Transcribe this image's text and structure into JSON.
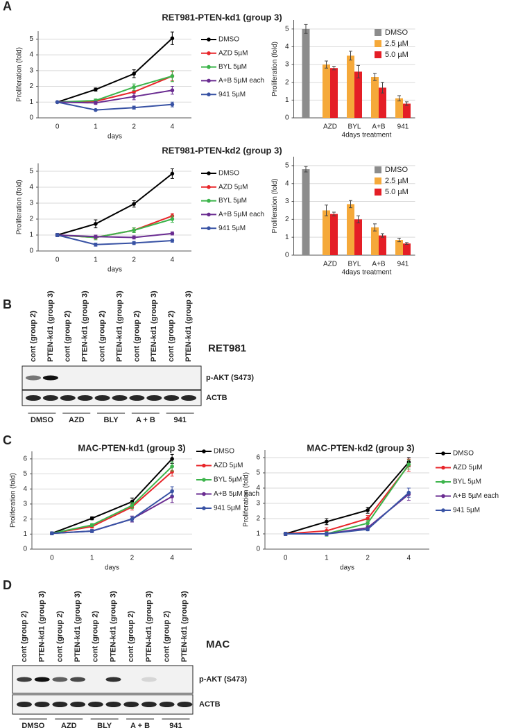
{
  "panel_labels": [
    "A",
    "B",
    "C",
    "D"
  ],
  "chart_data": [
    {
      "type": "line",
      "title": "RET981-PTEN-kd1 (group 3)",
      "xlabel": "days",
      "ylabel": "Proliferation (fold)",
      "categories": [
        "0",
        "1",
        "2",
        "4"
      ],
      "ylim": [
        0,
        5.5
      ],
      "yticks": [
        0,
        1,
        2,
        3,
        4,
        5
      ],
      "grid": true,
      "series": [
        {
          "name": "DMSO",
          "color": "#000000",
          "values": [
            1,
            1.8,
            2.8,
            5.05
          ],
          "errors": [
            0.05,
            0.1,
            0.25,
            0.4
          ]
        },
        {
          "name": "AZD 5µM",
          "color": "#e8262a",
          "values": [
            1,
            1.05,
            1.65,
            2.65
          ],
          "errors": [
            0.05,
            0.1,
            0.25,
            0.3
          ]
        },
        {
          "name": "BYL 5µM",
          "color": "#3cb44b",
          "values": [
            1,
            1.1,
            1.95,
            2.65
          ],
          "errors": [
            0.05,
            0.1,
            0.2,
            0.35
          ]
        },
        {
          "name": "A+B 5µM each",
          "color": "#6a2c91",
          "values": [
            1,
            0.95,
            1.35,
            1.75
          ],
          "errors": [
            0.05,
            0.1,
            0.2,
            0.25
          ]
        },
        {
          "name": "941 5µM",
          "color": "#3852a4",
          "values": [
            1,
            0.5,
            0.65,
            0.85
          ],
          "errors": [
            0.05,
            0.05,
            0.1,
            0.15
          ]
        }
      ]
    },
    {
      "type": "bar",
      "ylabel": "Proliferation (fold)",
      "xlabel": "4days treatment",
      "categories": [
        null,
        "AZD",
        "BYL",
        "A+B",
        "941"
      ],
      "ylim": [
        0,
        5.5
      ],
      "yticks": [
        0,
        1,
        2,
        3,
        4,
        5
      ],
      "grid": true,
      "series": [
        {
          "name": "DMSO",
          "color": "#8c8c8c",
          "values": [
            5.0,
            null,
            null,
            null,
            null
          ],
          "errors": [
            0.25,
            null,
            null,
            null,
            null
          ]
        },
        {
          "name": "2.5 µM",
          "color": "#f5a93a",
          "values": [
            null,
            3.0,
            3.5,
            2.3,
            1.1
          ],
          "errors": [
            null,
            0.2,
            0.25,
            0.2,
            0.15
          ]
        },
        {
          "name": "5.0 µM",
          "color": "#e41e26",
          "values": [
            null,
            2.8,
            2.6,
            1.7,
            0.8
          ],
          "errors": [
            null,
            0.1,
            0.35,
            0.3,
            0.1
          ]
        }
      ]
    },
    {
      "type": "line",
      "title": "RET981-PTEN-kd2 (group 3)",
      "xlabel": "days",
      "ylabel": "Proliferation (fold)",
      "categories": [
        "0",
        "1",
        "2",
        "4"
      ],
      "ylim": [
        0,
        5.5
      ],
      "yticks": [
        0,
        1,
        2,
        3,
        4,
        5
      ],
      "grid": true,
      "series": [
        {
          "name": "DMSO",
          "color": "#000000",
          "values": [
            1,
            1.7,
            2.95,
            4.85
          ],
          "errors": [
            0.1,
            0.25,
            0.2,
            0.3
          ]
        },
        {
          "name": "AZD 5µM",
          "color": "#e8262a",
          "values": [
            1,
            0.85,
            1.3,
            2.2
          ],
          "errors": [
            0.1,
            0.1,
            0.15,
            0.15
          ]
        },
        {
          "name": "BYL 5µM",
          "color": "#3cb44b",
          "values": [
            1,
            0.85,
            1.3,
            2.0
          ],
          "errors": [
            0.1,
            0.15,
            0.15,
            0.2
          ]
        },
        {
          "name": "A+B 5µM each",
          "color": "#6a2c91",
          "values": [
            1,
            0.9,
            0.85,
            1.1
          ],
          "errors": [
            0.1,
            0.1,
            0.1,
            0.1
          ]
        },
        {
          "name": "941 5µM",
          "color": "#3852a4",
          "values": [
            1,
            0.4,
            0.5,
            0.65
          ],
          "errors": [
            0.1,
            0.1,
            0.1,
            0.1
          ]
        }
      ]
    },
    {
      "type": "bar",
      "ylabel": "Proliferation (fold)",
      "xlabel": "4days treatment",
      "categories": [
        null,
        "AZD",
        "BYL",
        "A+B",
        "941"
      ],
      "ylim": [
        0,
        5.5
      ],
      "yticks": [
        0,
        1,
        2,
        3,
        4,
        5
      ],
      "grid": true,
      "series": [
        {
          "name": "DMSO",
          "color": "#8c8c8c",
          "values": [
            4.8,
            null,
            null,
            null,
            null
          ],
          "errors": [
            0.15,
            null,
            null,
            null,
            null
          ]
        },
        {
          "name": "2.5 µM",
          "color": "#f5a93a",
          "values": [
            null,
            2.5,
            2.85,
            1.55,
            0.85
          ],
          "errors": [
            null,
            0.3,
            0.2,
            0.2,
            0.1
          ]
        },
        {
          "name": "5.0 µM",
          "color": "#e41e26",
          "values": [
            null,
            2.3,
            2.0,
            1.1,
            0.65
          ],
          "errors": [
            null,
            0.1,
            0.2,
            0.1,
            0.05
          ]
        }
      ]
    },
    {
      "type": "line",
      "title": "MAC-PTEN-kd1 (group 3)",
      "xlabel": "days",
      "ylabel": "Proliferation (fold)",
      "categories": [
        "0",
        "1",
        "2",
        "4"
      ],
      "ylim": [
        0,
        6.5
      ],
      "yticks": [
        0,
        1,
        2,
        3,
        4,
        5,
        6
      ],
      "grid": true,
      "series": [
        {
          "name": "DMSO",
          "color": "#000000",
          "values": [
            1.05,
            2.05,
            3.15,
            6.0
          ],
          "errors": [
            0.1,
            0.1,
            0.25,
            0.3
          ]
        },
        {
          "name": "AZD 5µM",
          "color": "#e8262a",
          "values": [
            1.05,
            1.5,
            2.8,
            5.15
          ],
          "errors": [
            0.1,
            0.1,
            0.2,
            0.3
          ]
        },
        {
          "name": "BYL 5µM",
          "color": "#3cb44b",
          "values": [
            1.05,
            1.6,
            2.9,
            5.5
          ],
          "errors": [
            0.1,
            0.1,
            0.2,
            0.3
          ]
        },
        {
          "name": "A+B 5µM each",
          "color": "#6a2c91",
          "values": [
            1.05,
            1.2,
            2.0,
            3.5
          ],
          "errors": [
            0.1,
            0.1,
            0.2,
            0.4
          ]
        },
        {
          "name": "941 5µM",
          "color": "#3852a4",
          "values": [
            1.05,
            1.2,
            2.0,
            3.85
          ],
          "errors": [
            0.1,
            0.1,
            0.15,
            0.3
          ]
        }
      ]
    },
    {
      "type": "line",
      "title": "MAC-PTEN-kd2 (group 3)",
      "xlabel": "days",
      "ylabel": "Proliferation (fold)",
      "categories": [
        "0",
        "1",
        "2",
        "4"
      ],
      "ylim": [
        0,
        6.5
      ],
      "yticks": [
        0,
        1,
        2,
        3,
        4,
        5,
        6
      ],
      "grid": true,
      "series": [
        {
          "name": "DMSO",
          "color": "#000000",
          "values": [
            1,
            1.8,
            2.55,
            5.7
          ],
          "errors": [
            0.1,
            0.2,
            0.2,
            0.3
          ]
        },
        {
          "name": "AZD 5µM",
          "color": "#e8262a",
          "values": [
            1,
            1.2,
            2.0,
            5.5
          ],
          "errors": [
            0.1,
            0.2,
            0.2,
            0.4
          ]
        },
        {
          "name": "BYL 5µM",
          "color": "#3cb44b",
          "values": [
            1,
            1.0,
            1.7,
            5.55
          ],
          "errors": [
            0.1,
            0.15,
            0.2,
            0.3
          ]
        },
        {
          "name": "A+B 5µM each",
          "color": "#6a2c91",
          "values": [
            1,
            1.0,
            1.4,
            3.6
          ],
          "errors": [
            0.1,
            0.1,
            0.15,
            0.4
          ]
        },
        {
          "name": "941 5µM",
          "color": "#3852a4",
          "values": [
            1,
            1.0,
            1.3,
            3.7
          ],
          "errors": [
            0.1,
            0.1,
            0.1,
            0.3
          ]
        }
      ]
    }
  ],
  "blots": [
    {
      "title": "RET981",
      "lanes": [
        "cont (group 2)",
        "PTEN-kd1 (group 3)",
        "cont (group 2)",
        "PTEN-kd1 (group 3)",
        "cont (group 2)",
        "PTEN-kd1 (group 3)",
        "cont (group 2)",
        "PTEN-kd1 (group 3)",
        "cont (group 2)",
        "PTEN-kd1 (group 3)"
      ],
      "bands": [
        "p-AKT (S473)",
        "ACTB"
      ],
      "groups": [
        "DMSO",
        "AZD",
        "BLY",
        "A + B",
        "941"
      ]
    },
    {
      "title": "MAC",
      "lanes": [
        "cont (group 2)",
        "PTEN-kd1 (group 3)",
        "cont (group 2)",
        "PTEN-kd1 (group 3)",
        "cont (group 2)",
        "PTEN-kd1 (group 3)",
        "cont (group 2)",
        "PTEN-kd1 (group 3)",
        "cont (group 2)",
        "PTEN-kd1 (group 3)"
      ],
      "bands": [
        "p-AKT (S473)",
        "ACTB"
      ],
      "groups": [
        "DMSO",
        "AZD",
        "BLY",
        "A + B",
        "941"
      ]
    }
  ]
}
